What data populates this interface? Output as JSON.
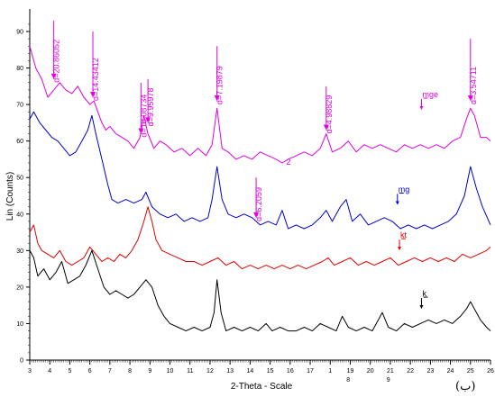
{
  "chart_data": {
    "type": "line",
    "xlabel": "2-Theta - Scale",
    "ylabel": "Lin (Counts)",
    "xlim": [
      3,
      26
    ],
    "ylim": [
      0,
      95
    ],
    "grid": false,
    "x_tick_labels": [
      "3",
      "4",
      "5",
      "6",
      "7",
      "8",
      "9",
      "10",
      "11",
      "12",
      "13",
      "14",
      "15",
      "16",
      "17",
      "1",
      "19",
      "20",
      "21",
      "22",
      "23",
      "24",
      "25",
      "26"
    ],
    "x_tick_extra": [
      {
        "x": 18.9,
        "label": "8"
      },
      {
        "x": 20.9,
        "label": "9"
      }
    ],
    "y_ticks": [
      0,
      10,
      20,
      30,
      40,
      50,
      60,
      70,
      80,
      90
    ],
    "series": [
      {
        "name": "mge",
        "color": "#e000e0",
        "points": [
          [
            3,
            86
          ],
          [
            3.3,
            80
          ],
          [
            3.6,
            77
          ],
          [
            3.9,
            72
          ],
          [
            4.2,
            74
          ],
          [
            4.5,
            76
          ],
          [
            4.8,
            74
          ],
          [
            5.1,
            73
          ],
          [
            5.4,
            75
          ],
          [
            5.7,
            72
          ],
          [
            6,
            70
          ],
          [
            6.2,
            71
          ],
          [
            6.4,
            68
          ],
          [
            6.6,
            65
          ],
          [
            6.8,
            63
          ],
          [
            7,
            64
          ],
          [
            7.3,
            62
          ],
          [
            7.6,
            61
          ],
          [
            7.9,
            60
          ],
          [
            8.2,
            58
          ],
          [
            8.5,
            61
          ],
          [
            8.7,
            67
          ],
          [
            8.9,
            62
          ],
          [
            9.2,
            58
          ],
          [
            9.5,
            60
          ],
          [
            9.8,
            59
          ],
          [
            10.2,
            57
          ],
          [
            10.6,
            58
          ],
          [
            11,
            56
          ],
          [
            11.4,
            58
          ],
          [
            11.8,
            56
          ],
          [
            12.1,
            59
          ],
          [
            12.35,
            69
          ],
          [
            12.6,
            58
          ],
          [
            12.9,
            57
          ],
          [
            13.3,
            55
          ],
          [
            13.7,
            56
          ],
          [
            14.1,
            55
          ],
          [
            14.5,
            57
          ],
          [
            14.9,
            56
          ],
          [
            15.3,
            55
          ],
          [
            15.6,
            54
          ],
          [
            15.9,
            55
          ],
          [
            16.3,
            56
          ],
          [
            16.7,
            57
          ],
          [
            17.1,
            56
          ],
          [
            17.5,
            58
          ],
          [
            17.8,
            62
          ],
          [
            18.1,
            57
          ],
          [
            18.5,
            58
          ],
          [
            18.9,
            60
          ],
          [
            19.3,
            57
          ],
          [
            19.7,
            59
          ],
          [
            20.1,
            58
          ],
          [
            20.5,
            59
          ],
          [
            20.9,
            58
          ],
          [
            21.3,
            57
          ],
          [
            21.7,
            59
          ],
          [
            22.1,
            58
          ],
          [
            22.5,
            59
          ],
          [
            22.9,
            58
          ],
          [
            23.3,
            59
          ],
          [
            23.7,
            58
          ],
          [
            24.1,
            60
          ],
          [
            24.5,
            61
          ],
          [
            24.8,
            66
          ],
          [
            25,
            69
          ],
          [
            25.2,
            67
          ],
          [
            25.5,
            61
          ],
          [
            25.8,
            61
          ],
          [
            26,
            60
          ]
        ]
      },
      {
        "name": "mg",
        "color": "#0000d0",
        "points": [
          [
            3,
            66
          ],
          [
            3.2,
            68
          ],
          [
            3.5,
            65
          ],
          [
            3.8,
            63
          ],
          [
            4.1,
            61
          ],
          [
            4.4,
            60
          ],
          [
            4.7,
            58
          ],
          [
            5,
            56
          ],
          [
            5.3,
            57
          ],
          [
            5.6,
            60
          ],
          [
            5.9,
            63
          ],
          [
            6.1,
            67
          ],
          [
            6.3,
            62
          ],
          [
            6.6,
            55
          ],
          [
            6.9,
            48
          ],
          [
            7.1,
            44
          ],
          [
            7.4,
            43
          ],
          [
            7.8,
            44
          ],
          [
            8.2,
            43
          ],
          [
            8.6,
            44
          ],
          [
            8.8,
            46
          ],
          [
            9.1,
            42
          ],
          [
            9.5,
            40
          ],
          [
            9.9,
            39
          ],
          [
            10.3,
            40
          ],
          [
            10.7,
            38
          ],
          [
            11.1,
            39
          ],
          [
            11.5,
            38
          ],
          [
            11.9,
            39
          ],
          [
            12.1,
            44
          ],
          [
            12.35,
            53
          ],
          [
            12.6,
            44
          ],
          [
            12.9,
            40
          ],
          [
            13.3,
            39
          ],
          [
            13.7,
            40
          ],
          [
            14.1,
            39
          ],
          [
            14.5,
            37
          ],
          [
            14.9,
            38
          ],
          [
            15.3,
            37
          ],
          [
            15.6,
            41
          ],
          [
            15.9,
            36
          ],
          [
            16.3,
            37
          ],
          [
            16.7,
            36
          ],
          [
            17.1,
            37
          ],
          [
            17.5,
            39
          ],
          [
            17.8,
            41
          ],
          [
            18.1,
            38
          ],
          [
            18.5,
            42
          ],
          [
            18.8,
            44
          ],
          [
            19.1,
            38
          ],
          [
            19.5,
            40
          ],
          [
            19.9,
            37
          ],
          [
            20.3,
            38
          ],
          [
            20.7,
            39
          ],
          [
            21.1,
            38
          ],
          [
            21.5,
            36
          ],
          [
            21.9,
            37
          ],
          [
            22.3,
            36
          ],
          [
            22.7,
            37
          ],
          [
            23.1,
            36
          ],
          [
            23.5,
            37
          ],
          [
            23.9,
            38
          ],
          [
            24.3,
            40
          ],
          [
            24.7,
            45
          ],
          [
            25,
            53
          ],
          [
            25.3,
            47
          ],
          [
            25.6,
            42
          ],
          [
            26,
            37
          ]
        ]
      },
      {
        "name": "kt",
        "color": "#e00000",
        "points": [
          [
            3,
            35
          ],
          [
            3.2,
            37
          ],
          [
            3.4,
            32
          ],
          [
            3.6,
            30
          ],
          [
            3.9,
            29
          ],
          [
            4.2,
            28
          ],
          [
            4.5,
            30
          ],
          [
            4.8,
            27
          ],
          [
            5.1,
            26
          ],
          [
            5.4,
            27
          ],
          [
            5.7,
            28
          ],
          [
            6,
            31
          ],
          [
            6.3,
            29
          ],
          [
            6.6,
            27
          ],
          [
            6.9,
            28
          ],
          [
            7.2,
            27
          ],
          [
            7.5,
            29
          ],
          [
            7.8,
            28
          ],
          [
            8.1,
            30
          ],
          [
            8.4,
            33
          ],
          [
            8.7,
            38
          ],
          [
            8.9,
            42
          ],
          [
            9.1,
            38
          ],
          [
            9.3,
            33
          ],
          [
            9.6,
            30
          ],
          [
            10,
            29
          ],
          [
            10.4,
            28
          ],
          [
            10.8,
            27
          ],
          [
            11.2,
            27
          ],
          [
            11.6,
            26
          ],
          [
            12,
            27
          ],
          [
            12.4,
            28
          ],
          [
            12.8,
            26
          ],
          [
            13.2,
            27
          ],
          [
            13.6,
            25
          ],
          [
            14,
            26
          ],
          [
            14.4,
            25
          ],
          [
            14.8,
            26
          ],
          [
            15.2,
            25
          ],
          [
            15.6,
            26
          ],
          [
            16,
            25
          ],
          [
            16.4,
            26
          ],
          [
            16.8,
            25
          ],
          [
            17.2,
            26
          ],
          [
            17.6,
            27
          ],
          [
            17.9,
            28
          ],
          [
            18.2,
            26
          ],
          [
            18.6,
            27
          ],
          [
            19,
            28
          ],
          [
            19.4,
            26
          ],
          [
            19.8,
            27
          ],
          [
            20.2,
            26
          ],
          [
            20.6,
            27
          ],
          [
            21,
            28
          ],
          [
            21.4,
            26
          ],
          [
            21.8,
            27
          ],
          [
            22.2,
            28
          ],
          [
            22.6,
            27
          ],
          [
            23,
            28
          ],
          [
            23.4,
            27
          ],
          [
            23.8,
            28
          ],
          [
            24.2,
            27
          ],
          [
            24.6,
            29
          ],
          [
            25,
            28
          ],
          [
            25.4,
            29
          ],
          [
            25.8,
            30
          ],
          [
            26,
            31
          ]
        ]
      },
      {
        "name": "k",
        "color": "#000000",
        "points": [
          [
            3,
            30
          ],
          [
            3.2,
            28
          ],
          [
            3.4,
            23
          ],
          [
            3.7,
            25
          ],
          [
            4,
            22
          ],
          [
            4.3,
            24
          ],
          [
            4.6,
            27
          ],
          [
            4.9,
            21
          ],
          [
            5.2,
            22
          ],
          [
            5.5,
            23
          ],
          [
            5.8,
            26
          ],
          [
            6.1,
            30
          ],
          [
            6.4,
            25
          ],
          [
            6.7,
            20
          ],
          [
            7,
            18
          ],
          [
            7.3,
            19
          ],
          [
            7.6,
            18
          ],
          [
            7.9,
            17
          ],
          [
            8.2,
            18
          ],
          [
            8.5,
            20
          ],
          [
            8.8,
            22
          ],
          [
            9.1,
            20
          ],
          [
            9.4,
            15
          ],
          [
            9.7,
            12
          ],
          [
            10,
            10
          ],
          [
            10.4,
            9
          ],
          [
            10.8,
            8
          ],
          [
            11.2,
            9
          ],
          [
            11.6,
            8
          ],
          [
            12,
            9
          ],
          [
            12.2,
            13
          ],
          [
            12.35,
            22
          ],
          [
            12.55,
            13
          ],
          [
            12.8,
            8
          ],
          [
            13.2,
            9
          ],
          [
            13.6,
            8
          ],
          [
            14,
            9
          ],
          [
            14.4,
            8
          ],
          [
            14.8,
            10
          ],
          [
            15.1,
            8
          ],
          [
            15.5,
            9
          ],
          [
            15.9,
            8
          ],
          [
            16.3,
            8
          ],
          [
            16.7,
            9
          ],
          [
            17.1,
            8
          ],
          [
            17.5,
            10
          ],
          [
            17.9,
            9
          ],
          [
            18.3,
            8
          ],
          [
            18.6,
            12
          ],
          [
            18.9,
            9
          ],
          [
            19.3,
            8
          ],
          [
            19.7,
            9
          ],
          [
            20.1,
            8
          ],
          [
            20.6,
            13
          ],
          [
            20.9,
            9
          ],
          [
            21.3,
            8
          ],
          [
            21.7,
            10
          ],
          [
            22.1,
            9
          ],
          [
            22.5,
            10
          ],
          [
            22.9,
            11
          ],
          [
            23.3,
            10
          ],
          [
            23.7,
            11
          ],
          [
            24.1,
            10
          ],
          [
            24.5,
            12
          ],
          [
            24.8,
            14
          ],
          [
            25,
            16
          ],
          [
            25.2,
            14
          ],
          [
            25.5,
            11
          ],
          [
            25.8,
            9
          ],
          [
            26,
            8
          ]
        ]
      }
    ],
    "series_labels": [
      {
        "text": "mge",
        "x": 22.6,
        "y": 72,
        "color": "#e000e0"
      },
      {
        "text": "mg",
        "x": 21.4,
        "y": 46,
        "color": "#0000d0"
      },
      {
        "text": "kt",
        "x": 21.5,
        "y": 33.5,
        "color": "#e00000"
      },
      {
        "text": "k",
        "x": 22.6,
        "y": 17.5,
        "color": "#000000"
      }
    ],
    "peak_markers": [
      {
        "label": "d=20.86052",
        "x": 4.2,
        "y_top": 93,
        "y_bottom": 77,
        "color": "#e000e0"
      },
      {
        "label": "d=14.43412",
        "x": 6.15,
        "y_top": 90,
        "y_bottom": 72,
        "color": "#e000e0"
      },
      {
        "label": "d=10.08734",
        "x": 8.55,
        "y_top": 76,
        "y_bottom": 62,
        "color": "#e000e0"
      },
      {
        "label": "d=9.95978",
        "x": 8.9,
        "y_top": 77,
        "y_bottom": 65,
        "color": "#e000e0"
      },
      {
        "label": "d=7.19879",
        "x": 12.35,
        "y_top": 86,
        "y_bottom": 71,
        "color": "#e000e0"
      },
      {
        "label": "d=4.98829",
        "x": 17.8,
        "y_top": 75,
        "y_bottom": 63,
        "color": "#e000e0"
      },
      {
        "label": "d=3.54711",
        "x": 25.0,
        "y_top": 88,
        "y_bottom": 71,
        "color": "#e000e0"
      },
      {
        "label": "d=6.2059",
        "x": 14.3,
        "y_top": 50,
        "y_bottom": 39,
        "color": "#e000e0"
      }
    ],
    "stray_marks": [
      {
        "text": "2",
        "x": 15.8,
        "y": 53.5,
        "color": "#e000e0"
      }
    ]
  },
  "corner_label": "(ب)"
}
